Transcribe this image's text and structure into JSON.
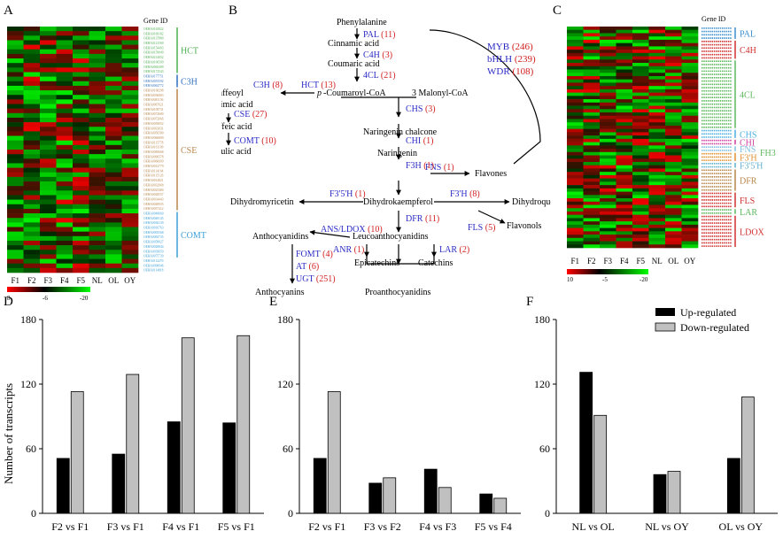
{
  "panels": {
    "A": "A",
    "B": "B",
    "C": "C",
    "D": "D",
    "E": "E",
    "F": "F"
  },
  "panel_a": {
    "gene_id_header": "Gene ID",
    "columns": [
      "F1",
      "F2",
      "F3",
      "F4",
      "F5",
      "NL",
      "OL",
      "OY"
    ],
    "groups": [
      {
        "name": "HCT",
        "color": "#4caf50",
        "rows": 10
      },
      {
        "name": "C3H",
        "color": "#2e6fbf",
        "rows": 3
      },
      {
        "name": "CSE",
        "color": "#b8864a",
        "rows": 26
      },
      {
        "name": "COMT",
        "color": "#3aa0d8",
        "rows": 10
      }
    ],
    "gene_ids": [
      "OEHA0165822",
      "OEHA0169182",
      "OEHA0137880",
      "OEHA0121569",
      "OEHA0154493",
      "OEHA0159049",
      "OEHA0214052",
      "OEHA0106509",
      "OEHA0065499",
      "OEHA0172543",
      "OEHA0177751",
      "OEHA0055592",
      "OEHA0063772",
      "OEHA0168298",
      "OEHA0036803",
      "OEHA0081156",
      "OEHA0067621",
      "OEHA0109731",
      "OEHA0072680",
      "OEHA0072066",
      "OEHA0059052",
      "OEHA0033031",
      "OEHA0056580",
      "OEHA0066809",
      "OEHA0115778",
      "OEHA0161109",
      "OEHA0085668",
      "OEHA0096578",
      "OEHA0066609",
      "OEHA0012779",
      "OEHA0114104",
      "OEHA0115126",
      "OEHA0014821",
      "OEHA0032968",
      "OEHA0025480",
      "OEHA0028557",
      "OEHA0034443",
      "OEHA0048935",
      "OEHA0057412",
      "OEHA0049660",
      "OEHA0049145",
      "OEHA0036139",
      "OEHA0016763",
      "OEHA0005568",
      "OEHA0065735",
      "OEHA0058027",
      "OEHA0028844",
      "OEHA0039050",
      "OEHA0075739",
      "OEHA0112270"
    ],
    "extra_ids": [
      "OEHA0098946",
      "OEHA0114818"
    ],
    "scale": {
      "max": "8",
      "mid": "-6",
      "min": "-20"
    }
  },
  "panel_b": {
    "compounds": {
      "phenylalanine": "Phenylalanine",
      "cinnamic": "Cinnamic acid",
      "coumaric": "Coumaric acid",
      "pcoumaroyl_prefix": "p",
      "pcoumaroyl": "-Coumaroyl-CoA",
      "malonyl": "3 Malonyl-CoA",
      "caffeoyl": "Caffeoyl",
      "shikimic": "shikimic acid",
      "caffeic": "Caffeic acid",
      "ferulic": "Ferulic acid",
      "naringenin_chalcone": "Naringenin chalcone",
      "naringenin": "Naringenin",
      "flavones": "Flavones",
      "dihydromyricetin": "Dihydromyricetin",
      "dihydrokaempferol": "Dihydrokaempferol",
      "dihydroquercetin": "Dihydroquercetin",
      "flavonols": "Flavonols",
      "anthocyanidins": "Anthocyanidins",
      "leucoanthocyanidins": "Leucoanthocyanidins",
      "epicatechins": "Epicatechins",
      "catechins": "Catechins",
      "anthocyanins": "Anthocyanins",
      "proanthocyanidins": "Proanthocyanidins"
    },
    "enzymes": [
      {
        "name": "PAL",
        "count": "(11)"
      },
      {
        "name": "C4H",
        "count": "(3)"
      },
      {
        "name": "4CL",
        "count": "(21)"
      },
      {
        "name": "C3H",
        "count": "(8)"
      },
      {
        "name": "HCT",
        "count": "(13)"
      },
      {
        "name": "CSE",
        "count": "(27)"
      },
      {
        "name": "COMT",
        "count": "(10)"
      },
      {
        "name": "CHS",
        "count": "(3)"
      },
      {
        "name": "CHI",
        "count": "(1)"
      },
      {
        "name": "FNS",
        "count": "(1)"
      },
      {
        "name": "F3H",
        "count": "(1)"
      },
      {
        "name": "F3'5'H",
        "count": "(1)"
      },
      {
        "name": "F3'H",
        "count": "(8)"
      },
      {
        "name": "DFR",
        "count": "(11)"
      },
      {
        "name": "FLS",
        "count": "(5)"
      },
      {
        "name": "ANS/LDOX",
        "count": "(10)"
      },
      {
        "name": "ANR",
        "count": "(1)"
      },
      {
        "name": "LAR",
        "count": "(2)"
      },
      {
        "name": "FOMT",
        "count": "(4)"
      },
      {
        "name": "AT",
        "count": "(6)"
      },
      {
        "name": "UGT",
        "count": "(251)"
      }
    ],
    "tfs": [
      {
        "name": "MYB",
        "count": "(246)"
      },
      {
        "name": "bHLH",
        "count": "(239)"
      },
      {
        "name": "WDR",
        "count": "(108)"
      }
    ],
    "colors": {
      "enzyme": "#2b2bc4",
      "count": "#d22020"
    }
  },
  "panel_c": {
    "gene_id_header": "Gene ID",
    "columns": [
      "F1",
      "F2",
      "F3",
      "F4",
      "F5",
      "NL",
      "OL",
      "OY"
    ],
    "groups": [
      {
        "name": "PAL",
        "color": "#3a8fd0",
        "rows": 4
      },
      {
        "name": "C4H",
        "color": "#d03030",
        "rows": 6
      },
      {
        "name": "4CL",
        "color": "#5cb85c",
        "rows": 21
      },
      {
        "name": "CHS",
        "color": "#4ab0e0",
        "rows": 3
      },
      {
        "name": "CHI",
        "color": "#d040a0",
        "rows": 2
      },
      {
        "name": "FNS",
        "color": "#7fbfe0",
        "rows": 2
      },
      {
        "name": "FH3",
        "color": "#5cb85c",
        "rows": 0
      },
      {
        "name": "F3'H",
        "color": "#e09030",
        "rows": 3
      },
      {
        "name": "F3'5'H",
        "color": "#60b0d0",
        "rows": 2
      },
      {
        "name": "DFR",
        "color": "#b8864a",
        "rows": 7
      },
      {
        "name": "FLS",
        "color": "#d03030",
        "rows": 5
      },
      {
        "name": "LAR",
        "color": "#5cb85c",
        "rows": 2
      },
      {
        "name": "LDOX",
        "color": "#d03030",
        "rows": 10
      }
    ],
    "scale": {
      "max": "10",
      "mid": "-5",
      "min": "-20"
    }
  },
  "bar_common": {
    "ylabel": "Number of transcripts",
    "yticks": [
      "0",
      "60",
      "120",
      "180"
    ],
    "legend": [
      "Up-regulated",
      "Down-regulated"
    ],
    "colors": {
      "up": "#000000",
      "down": "#c0c0c0"
    }
  },
  "chart_data": [
    {
      "type": "bar",
      "panel": "D",
      "categories": [
        "F2 vs F1",
        "F3 vs F1",
        "F4 vs F1",
        "F5 vs F1"
      ],
      "series": [
        {
          "name": "Up-regulated",
          "values": [
            51,
            55,
            85,
            84
          ]
        },
        {
          "name": "Down-regulated",
          "values": [
            113,
            129,
            163,
            165
          ]
        }
      ],
      "ylabel": "Number of transcripts",
      "ylim": [
        0,
        180
      ]
    },
    {
      "type": "bar",
      "panel": "E",
      "categories": [
        "F2 vs F1",
        "F3 vs F2",
        "F4 vs F3",
        "F5 vs F4"
      ],
      "series": [
        {
          "name": "Up-regulated",
          "values": [
            51,
            28,
            41,
            18
          ]
        },
        {
          "name": "Down-regulated",
          "values": [
            113,
            33,
            24,
            14
          ]
        }
      ],
      "ylim": [
        0,
        180
      ]
    },
    {
      "type": "bar",
      "panel": "F",
      "categories": [
        "NL vs OL",
        "NL vs OY",
        "OL vs OY"
      ],
      "series": [
        {
          "name": "Up-regulated",
          "values": [
            131,
            36,
            51
          ]
        },
        {
          "name": "Down-regulated",
          "values": [
            91,
            39,
            108
          ]
        }
      ],
      "ylim": [
        0,
        180
      ]
    }
  ]
}
